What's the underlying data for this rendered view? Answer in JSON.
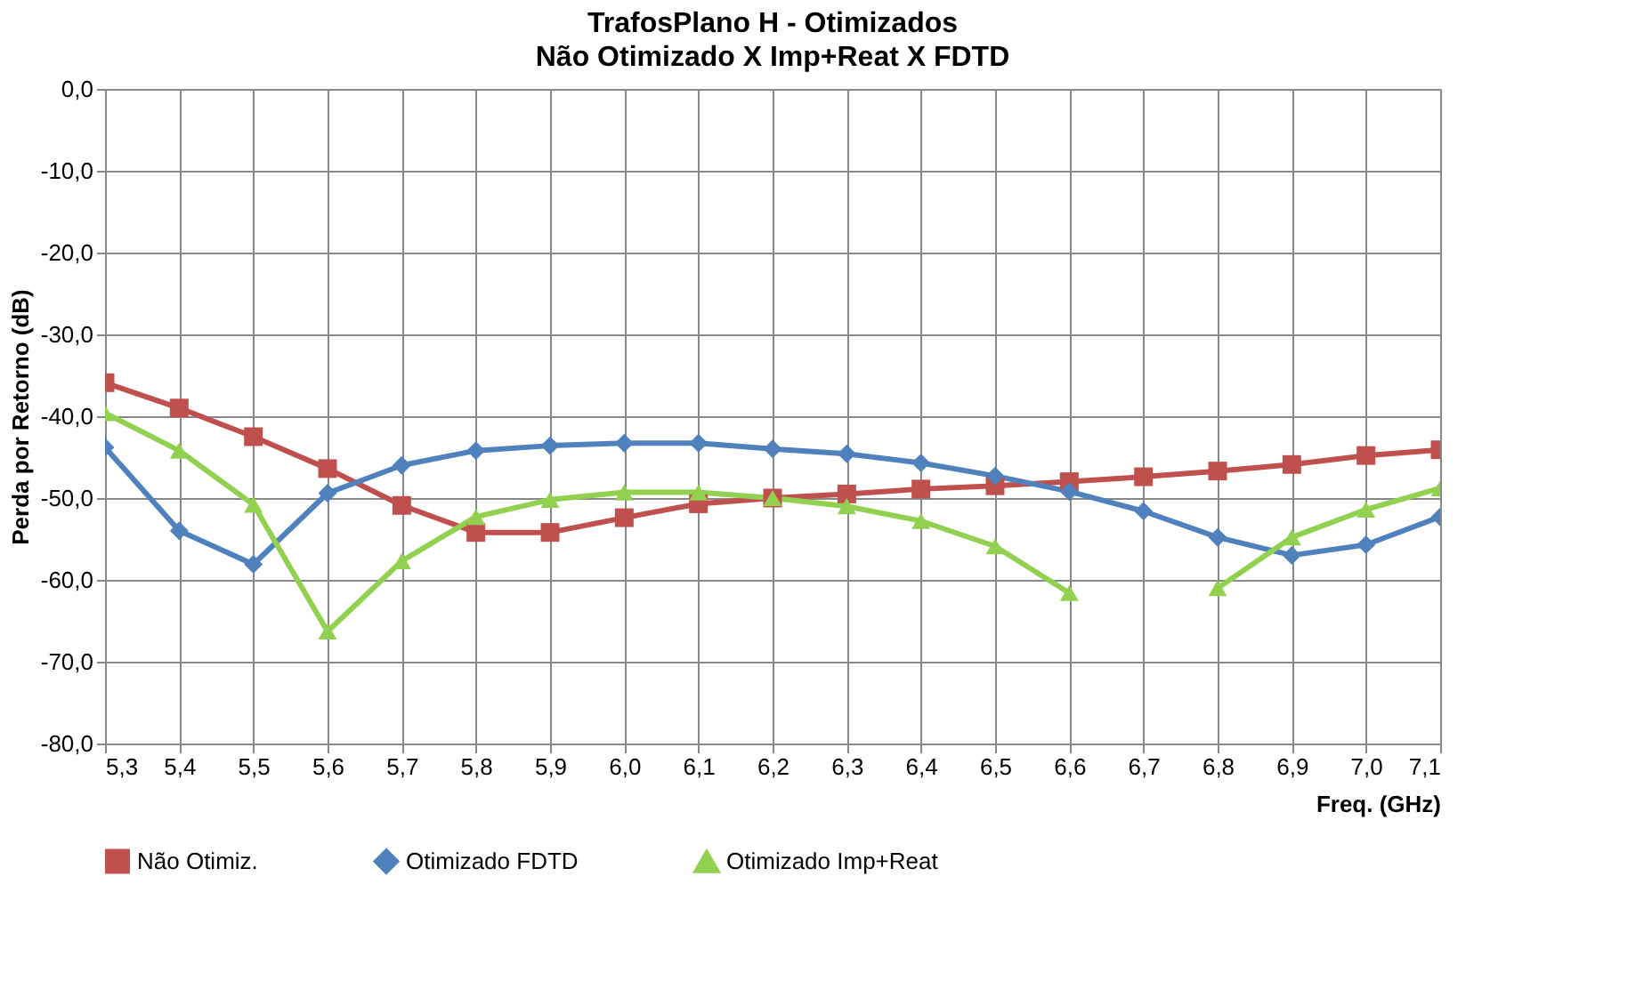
{
  "chart_data": {
    "type": "line",
    "title": "TrafosPlano H - Otimizados",
    "subtitle": "Não Otimizado X Imp+Reat X FDTD",
    "ylabel": "Perda por Retorno (dB)",
    "xlabel": "Freq. (GHz)",
    "x": [
      5.3,
      5.4,
      5.5,
      5.6,
      5.7,
      5.8,
      5.9,
      6.0,
      6.1,
      6.2,
      6.3,
      6.4,
      6.5,
      6.6,
      6.7,
      6.8,
      6.9,
      7.0,
      7.1
    ],
    "xlim": [
      5.3,
      7.1
    ],
    "xticks": [
      {
        "value": 5.3,
        "label": "5,3"
      },
      {
        "value": 5.4,
        "label": "5,4"
      },
      {
        "value": 5.5,
        "label": "5,5"
      },
      {
        "value": 5.6,
        "label": "5,6"
      },
      {
        "value": 5.7,
        "label": "5,7"
      },
      {
        "value": 5.8,
        "label": "5,8"
      },
      {
        "value": 5.9,
        "label": "5,9"
      },
      {
        "value": 6.0,
        "label": "6,0"
      },
      {
        "value": 6.1,
        "label": "6,1"
      },
      {
        "value": 6.2,
        "label": "6,2"
      },
      {
        "value": 6.3,
        "label": "6,3"
      },
      {
        "value": 6.4,
        "label": "6,4"
      },
      {
        "value": 6.5,
        "label": "6,5"
      },
      {
        "value": 6.6,
        "label": "6,6"
      },
      {
        "value": 6.7,
        "label": "6,7"
      },
      {
        "value": 6.8,
        "label": "6,8"
      },
      {
        "value": 6.9,
        "label": "6,9"
      },
      {
        "value": 7.0,
        "label": "7,0"
      },
      {
        "value": 7.1,
        "label": "7,1"
      }
    ],
    "ylim": [
      -80,
      0
    ],
    "yticks": [
      {
        "value": 0,
        "label": "0,0"
      },
      {
        "value": -10,
        "label": "-10,0"
      },
      {
        "value": -20,
        "label": "-20,0"
      },
      {
        "value": -30,
        "label": "-30,0"
      },
      {
        "value": -40,
        "label": "-40,0"
      },
      {
        "value": -50,
        "label": "-50,0"
      },
      {
        "value": -60,
        "label": "-60,0"
      },
      {
        "value": -70,
        "label": "-70,0"
      },
      {
        "value": -80,
        "label": "-80,0"
      }
    ],
    "grid": true,
    "legend": "bottom",
    "line_style": "solid",
    "series": [
      {
        "name": "Não Otimiz.",
        "color": "#c0504d",
        "marker": "square",
        "values": [
          -35.9,
          -39.0,
          -42.5,
          -46.4,
          -50.9,
          -54.2,
          -54.2,
          -52.4,
          -50.7,
          -50.0,
          -49.5,
          -48.9,
          -48.5,
          -48.0,
          -47.4,
          -46.7,
          -45.9,
          -44.8,
          -44.1
        ]
      },
      {
        "name": "Otimizado FDTD",
        "color": "#4f81bd",
        "marker": "diamond",
        "values": [
          -43.8,
          -54.0,
          -58.1,
          -49.4,
          -46.0,
          -44.2,
          -43.6,
          -43.3,
          -43.3,
          -44.0,
          -44.6,
          -45.7,
          -47.3,
          -49.2,
          -51.6,
          -54.8,
          -57.0,
          -55.7,
          -52.3
        ]
      },
      {
        "name": "Otimizado Imp+Reat",
        "color": "#92d050",
        "marker": "triangle",
        "values": [
          -39.6,
          -44.2,
          -50.8,
          -66.3,
          -57.7,
          -52.3,
          -50.2,
          -49.3,
          -49.3,
          -50.0,
          -51.0,
          -52.8,
          -55.9,
          -61.6,
          null,
          -61.0,
          -54.8,
          -51.4,
          -48.8
        ]
      }
    ]
  }
}
